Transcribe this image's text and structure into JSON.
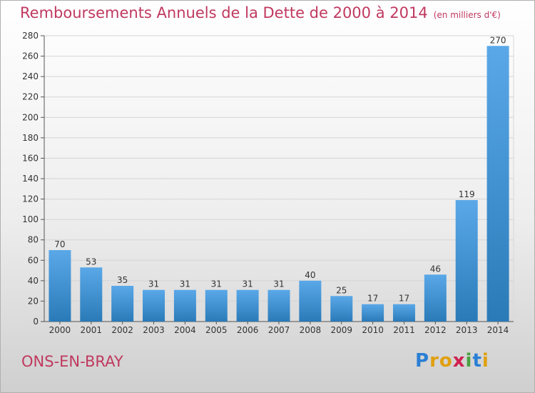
{
  "title": "Remboursements Annuels de la Dette de 2000 à 2014",
  "unit_note": "(en milliers d'€)",
  "town": "ONS-EN-BRAY",
  "logo": {
    "letters": [
      "P",
      "r",
      "o",
      "x",
      "i",
      "t",
      "i"
    ],
    "colors": [
      "#2a7fd4",
      "#e0a010",
      "#e0a010",
      "#d02050",
      "#4aa040",
      "#2a7fd4",
      "#e0a010"
    ]
  },
  "colors": {
    "bar_top": "#5aa8e8",
    "bar_bottom": "#2a7ab8",
    "title": "#c0395f"
  },
  "chart_data": {
    "type": "bar",
    "title": "Remboursements Annuels de la Dette de 2000 à 2014",
    "ylabel": "en milliers d'€",
    "categories": [
      "2000",
      "2001",
      "2002",
      "2003",
      "2004",
      "2005",
      "2006",
      "2007",
      "2008",
      "2009",
      "2010",
      "2011",
      "2012",
      "2013",
      "2014"
    ],
    "values": [
      70,
      53,
      35,
      31,
      31,
      31,
      31,
      31,
      40,
      25,
      17,
      17,
      46,
      119,
      270
    ],
    "ylim": [
      0,
      280
    ],
    "yticks": [
      0,
      20,
      40,
      60,
      80,
      100,
      120,
      140,
      160,
      180,
      200,
      220,
      240,
      260,
      280
    ],
    "grid": true
  }
}
